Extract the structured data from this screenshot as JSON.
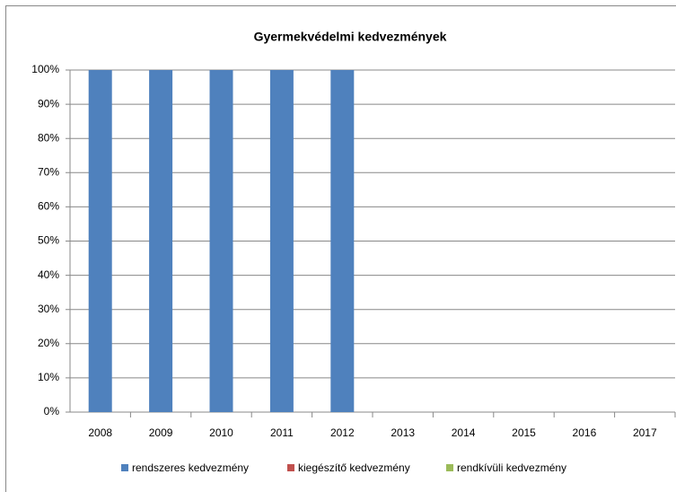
{
  "chart_data": {
    "type": "stacked-bar-100",
    "title": "Gyermekvédelmi kedvezmények",
    "categories": [
      "2008",
      "2009",
      "2010",
      "2011",
      "2012",
      "2013",
      "2014",
      "2015",
      "2016",
      "2017"
    ],
    "series": [
      {
        "name": "rendszeres kedvezmény",
        "color": "#4f81bd",
        "values": [
          100,
          100,
          100,
          100,
          100,
          null,
          null,
          null,
          null,
          null
        ]
      },
      {
        "name": "kiegészítő kedvezmény",
        "color": "#c0504d",
        "values": [
          0,
          0,
          0,
          0,
          0,
          null,
          null,
          null,
          null,
          null
        ]
      },
      {
        "name": "rendkívüli kedvezmény",
        "color": "#9bbb59",
        "values": [
          0,
          0,
          0,
          0,
          0,
          null,
          null,
          null,
          null,
          null
        ]
      }
    ],
    "ylim": [
      0,
      100
    ],
    "yticks": [
      {
        "value": 0,
        "label": "0%"
      },
      {
        "value": 10,
        "label": "10%"
      },
      {
        "value": 20,
        "label": "20%"
      },
      {
        "value": 30,
        "label": "30%"
      },
      {
        "value": 40,
        "label": "40%"
      },
      {
        "value": 50,
        "label": "50%"
      },
      {
        "value": 60,
        "label": "60%"
      },
      {
        "value": 70,
        "label": "70%"
      },
      {
        "value": 80,
        "label": "80%"
      },
      {
        "value": 90,
        "label": "90%"
      },
      {
        "value": 100,
        "label": "100%"
      }
    ],
    "grid": true,
    "legend": "bottom"
  }
}
